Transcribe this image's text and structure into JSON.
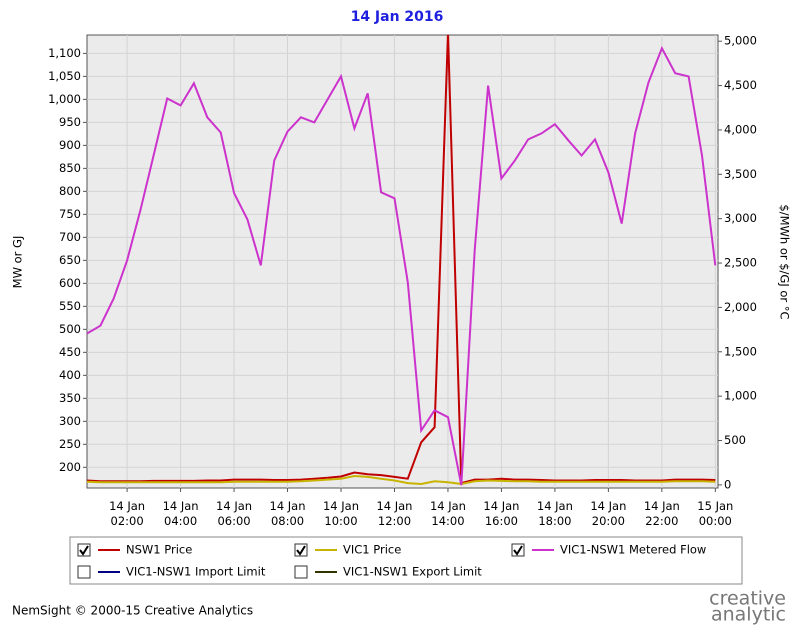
{
  "chart_data": {
    "type": "line",
    "title": "14 Jan 2016",
    "y_label": "MW or GJ",
    "y2_label": "$/MWh or $/GJ or °C",
    "x": [
      0.5,
      1,
      1.5,
      2,
      2.5,
      3,
      3.5,
      4,
      4.5,
      5,
      5.5,
      6,
      6.5,
      7,
      7.5,
      8,
      8.5,
      9,
      9.5,
      10,
      10.5,
      11,
      11.5,
      12,
      12.5,
      13,
      13.5,
      14,
      14.5,
      15,
      15.5,
      16,
      16.5,
      17,
      17.5,
      18,
      18.5,
      19,
      19.5,
      20,
      20.5,
      21,
      21.5,
      22,
      22.5,
      23,
      23.5,
      24
    ],
    "xlim": [
      0.5,
      24.1
    ],
    "xticks": [
      {
        "value": 2,
        "label": "14 Jan\n02:00"
      },
      {
        "value": 4,
        "label": "14 Jan\n04:00"
      },
      {
        "value": 6,
        "label": "14 Jan\n06:00"
      },
      {
        "value": 8,
        "label": "14 Jan\n08:00"
      },
      {
        "value": 10,
        "label": "14 Jan\n10:00"
      },
      {
        "value": 12,
        "label": "14 Jan\n12:00"
      },
      {
        "value": 14,
        "label": "14 Jan\n14:00"
      },
      {
        "value": 16,
        "label": "14 Jan\n16:00"
      },
      {
        "value": 18,
        "label": "14 Jan\n18:00"
      },
      {
        "value": 20,
        "label": "14 Jan\n20:00"
      },
      {
        "value": 22,
        "label": "14 Jan\n22:00"
      },
      {
        "value": 24,
        "label": "15 Jan\n00:00"
      }
    ],
    "ylim": [
      155,
      1140
    ],
    "yticks": [
      200,
      250,
      300,
      350,
      400,
      450,
      500,
      550,
      600,
      650,
      700,
      750,
      800,
      850,
      900,
      950,
      {
        "value": 1000,
        "label": "1,000"
      },
      {
        "value": 1050,
        "label": "1,050"
      },
      {
        "value": 1100,
        "label": "1,100"
      }
    ],
    "y2lim": [
      -35,
      5070
    ],
    "y2ticks": [
      0,
      500,
      {
        "value": 1000,
        "label": "1,000"
      },
      {
        "value": 1500,
        "label": "1,500"
      },
      {
        "value": 2000,
        "label": "2,000"
      },
      {
        "value": 2500,
        "label": "2,500"
      },
      {
        "value": 3000,
        "label": "3,000"
      },
      {
        "value": 3500,
        "label": "3,500"
      },
      {
        "value": 4000,
        "label": "4,000"
      },
      {
        "value": 4500,
        "label": "4,500"
      },
      {
        "value": 5000,
        "label": "5,000"
      }
    ],
    "grid": true,
    "series": [
      {
        "name": "NSW1 Price",
        "color": "#c00000",
        "axis": "y2",
        "checked": true,
        "values": [
          50,
          40,
          40,
          40,
          40,
          45,
          45,
          45,
          45,
          50,
          50,
          60,
          60,
          60,
          55,
          55,
          60,
          70,
          80,
          95,
          140,
          120,
          110,
          90,
          70,
          480,
          650,
          5100,
          20,
          60,
          60,
          70,
          60,
          60,
          55,
          50,
          50,
          50,
          55,
          55,
          55,
          50,
          50,
          50,
          60,
          60,
          60,
          55
        ]
      },
      {
        "name": "VIC1 Price",
        "color": "#c8b400",
        "axis": "y2",
        "checked": true,
        "values": [
          35,
          30,
          30,
          30,
          30,
          30,
          30,
          30,
          30,
          30,
          30,
          35,
          35,
          35,
          35,
          35,
          40,
          50,
          60,
          70,
          100,
          90,
          70,
          50,
          20,
          10,
          40,
          30,
          10,
          40,
          50,
          45,
          40,
          40,
          35,
          35,
          35,
          35,
          35,
          35,
          35,
          35,
          35,
          35,
          40,
          40,
          40,
          35
        ]
      },
      {
        "name": "VIC1-NSW1 Metered Flow",
        "color": "#cc33cc",
        "checked": true,
        "values": [
          491,
          508,
          567,
          650,
          760,
          880,
          1002,
          987,
          1035,
          961,
          928,
          796,
          739,
          639,
          867,
          930,
          961,
          950,
          1000,
          1050,
          937,
          1013,
          798,
          785,
          602,
          280,
          324,
          309,
          161,
          672,
          1030,
          828,
          867,
          913,
          926,
          946,
          911,
          878,
          913,
          841,
          730,
          926,
          1037,
          1111,
          1057,
          1050,
          878,
          639
        ]
      }
    ],
    "hidden_series": [
      {
        "name": "VIC1-NSW1 Import Limit",
        "color": "#000080",
        "checked": false
      },
      {
        "name": "VIC1-NSW1 Export Limit",
        "color": "#333300",
        "checked": false
      }
    ],
    "footer": "NemSight © 2000-15 Creative Analytics",
    "logo": [
      "creative",
      "analytic"
    ]
  }
}
